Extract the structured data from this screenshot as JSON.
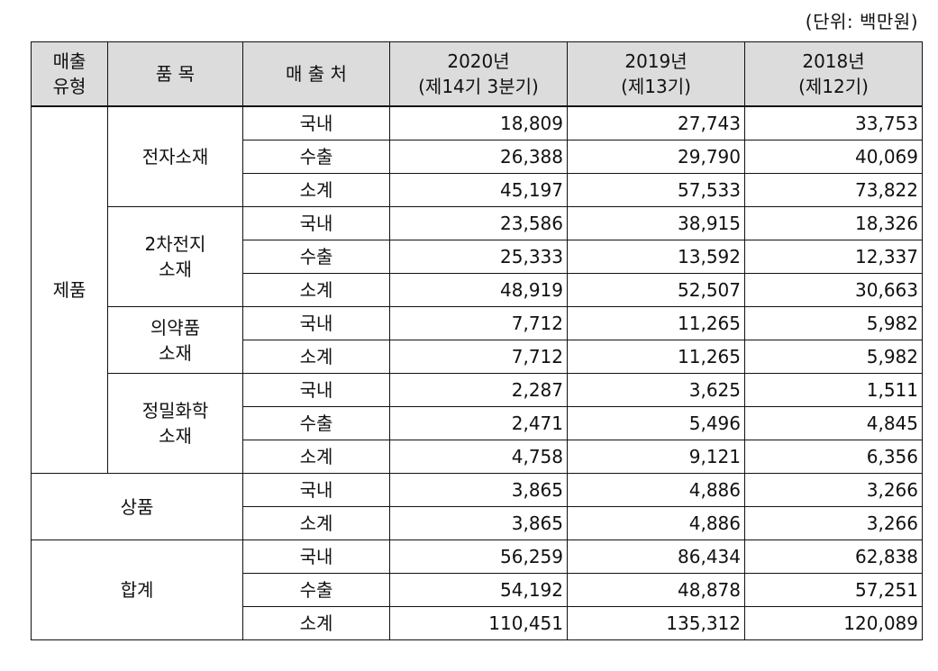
{
  "unit_note": "(단위: 백만원)",
  "headers": {
    "sales_type": [
      "매출",
      "유형"
    ],
    "item": "품 목",
    "destination": "매 출 처",
    "periods": [
      {
        "year": "2020년",
        "sub": "(제14기 3분기)"
      },
      {
        "year": "2019년",
        "sub": "(제13기)"
      },
      {
        "year": "2018년",
        "sub": "(제12기)"
      }
    ]
  },
  "groups": [
    {
      "type": "제품",
      "items": [
        {
          "name": [
            "전자소재"
          ],
          "rows": [
            {
              "dest": "국내",
              "values": [
                "18,809",
                "27,743",
                "33,753"
              ]
            },
            {
              "dest": "수출",
              "values": [
                "26,388",
                "29,790",
                "40,069"
              ]
            },
            {
              "dest": "소계",
              "values": [
                "45,197",
                "57,533",
                "73,822"
              ]
            }
          ]
        },
        {
          "name": [
            "2차전지",
            "소재"
          ],
          "rows": [
            {
              "dest": "국내",
              "values": [
                "23,586",
                "38,915",
                "18,326"
              ]
            },
            {
              "dest": "수출",
              "values": [
                "25,333",
                "13,592",
                "12,337"
              ]
            },
            {
              "dest": "소계",
              "values": [
                "48,919",
                "52,507",
                "30,663"
              ]
            }
          ]
        },
        {
          "name": [
            "의약품",
            "소재"
          ],
          "rows": [
            {
              "dest": "국내",
              "values": [
                "7,712",
                "11,265",
                "5,982"
              ]
            },
            {
              "dest": "소계",
              "values": [
                "7,712",
                "11,265",
                "5,982"
              ]
            }
          ]
        },
        {
          "name": [
            "정밀화학",
            "소재"
          ],
          "rows": [
            {
              "dest": "국내",
              "values": [
                "2,287",
                "3,625",
                "1,511"
              ]
            },
            {
              "dest": "수출",
              "values": [
                "2,471",
                "5,496",
                "4,845"
              ]
            },
            {
              "dest": "소계",
              "values": [
                "4,758",
                "9,121",
                "6,356"
              ]
            }
          ]
        }
      ]
    },
    {
      "type": "상품",
      "items": [
        {
          "name": [],
          "rows": [
            {
              "dest": "국내",
              "values": [
                "3,865",
                "4,886",
                "3,266"
              ]
            },
            {
              "dest": "소계",
              "values": [
                "3,865",
                "4,886",
                "3,266"
              ]
            }
          ]
        }
      ]
    },
    {
      "type": "합계",
      "items": [
        {
          "name": [],
          "rows": [
            {
              "dest": "국내",
              "values": [
                "56,259",
                "86,434",
                "62,838"
              ]
            },
            {
              "dest": "수출",
              "values": [
                "54,192",
                "48,878",
                "57,251"
              ]
            },
            {
              "dest": "소계",
              "values": [
                "110,451",
                "135,312",
                "120,089"
              ]
            }
          ]
        }
      ]
    }
  ]
}
